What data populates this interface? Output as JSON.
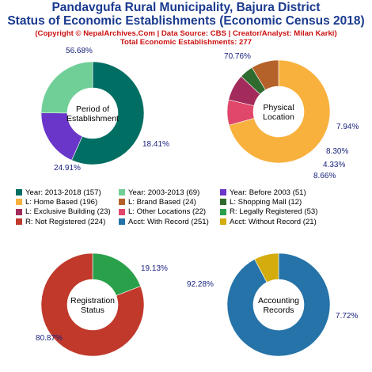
{
  "header": {
    "title_line1": "Pandavgufa Rural Municipality, Bajura District",
    "title_line2": "Status of Economic Establishments (Economic Census 2018)",
    "subtitle": "(Copyright © NepalArchives.Com | Data Source: CBS | Creator/Analyst: Milan Karki)",
    "total": "Total Economic Establishments: 277"
  },
  "chart_data": [
    {
      "type": "pie",
      "title": "Period of Establishment",
      "center_label": [
        "Period of",
        "Establishment"
      ],
      "slices": [
        {
          "label": "Year: 2013-2018",
          "value": 157,
          "pct_label": "56.68%",
          "color": "#006e62"
        },
        {
          "label": "Year: Before 2003",
          "value": 51,
          "pct_label": "18.41%",
          "color": "#6a36c9"
        },
        {
          "label": "Year: 2003-2013",
          "value": 69,
          "pct_label": "24.91%",
          "color": "#6fcf97"
        }
      ]
    },
    {
      "type": "pie",
      "title": "Physical Location",
      "center_label": [
        "Physical",
        "Location"
      ],
      "slices": [
        {
          "label": "L: Home Based",
          "value": 196,
          "pct_label": "70.76%",
          "color": "#f9b13e"
        },
        {
          "label": "L: Other Locations",
          "value": 22,
          "pct_label": "7.94%",
          "color": "#e0476a"
        },
        {
          "label": "L: Exclusive Building",
          "value": 23,
          "pct_label": "8.30%",
          "color": "#a22b5c"
        },
        {
          "label": "L: Shopping Mall",
          "value": 12,
          "pct_label": "4.33%",
          "color": "#2f6b2f"
        },
        {
          "label": "L: Brand Based",
          "value": 24,
          "pct_label": "8.66%",
          "color": "#b5622a"
        }
      ]
    },
    {
      "type": "pie",
      "title": "Registration Status",
      "center_label": [
        "Registration",
        "Status"
      ],
      "slices": [
        {
          "label": "R: Legally Registered",
          "value": 53,
          "pct_label": "19.13%",
          "color": "#2aa04a"
        },
        {
          "label": "R: Not Registered",
          "value": 224,
          "pct_label": "80.87%",
          "color": "#c0392b"
        }
      ]
    },
    {
      "type": "pie",
      "title": "Accounting Records",
      "center_label": [
        "Accounting",
        "Records"
      ],
      "slices": [
        {
          "label": "Acct: With Record",
          "value": 251,
          "pct_label": "92.28%",
          "color": "#2573a8"
        },
        {
          "label": "Acct: Without Record",
          "value": 21,
          "pct_label": "7.72%",
          "color": "#d4ac0d"
        }
      ]
    }
  ],
  "legend": [
    {
      "label": "Year: 2013-2018 (157)",
      "color": "#006e62"
    },
    {
      "label": "Year: 2003-2013 (69)",
      "color": "#6fcf97"
    },
    {
      "label": "Year: Before 2003 (51)",
      "color": "#6a36c9"
    },
    {
      "label": "L: Home Based (196)",
      "color": "#f9b13e"
    },
    {
      "label": "L: Brand Based (24)",
      "color": "#b5622a"
    },
    {
      "label": "L: Shopping Mall (12)",
      "color": "#2f6b2f"
    },
    {
      "label": "L: Exclusive Building (23)",
      "color": "#a22b5c"
    },
    {
      "label": "L: Other Locations (22)",
      "color": "#e0476a"
    },
    {
      "label": "R: Legally Registered (53)",
      "color": "#2aa04a"
    },
    {
      "label": "R: Not Registered (224)",
      "color": "#c0392b"
    },
    {
      "label": "Acct: With Record (251)",
      "color": "#2573a8"
    },
    {
      "label": "Acct: Without Record (21)",
      "color": "#d4ac0d"
    }
  ]
}
